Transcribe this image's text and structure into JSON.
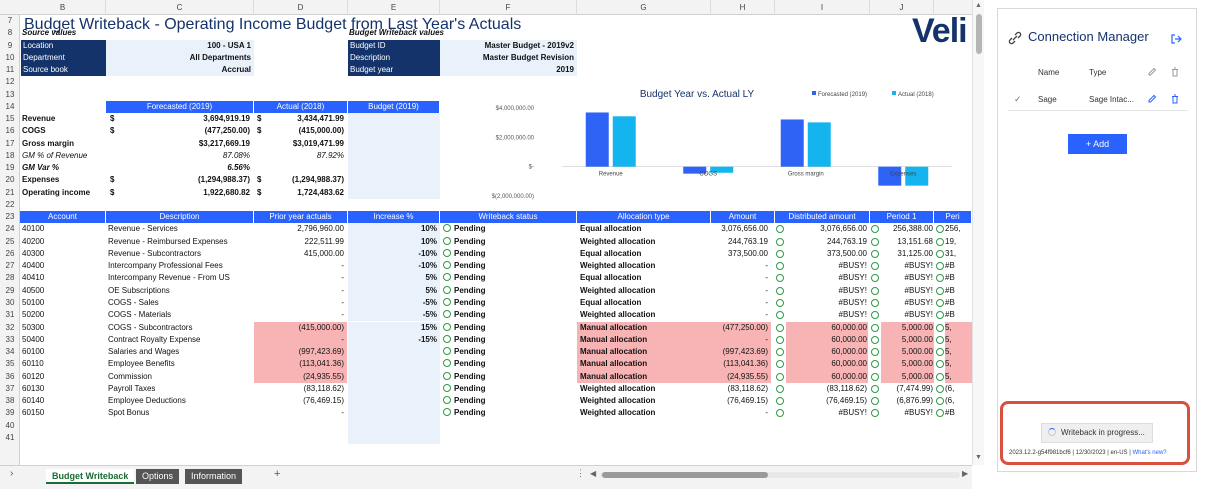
{
  "column_headers": [
    "B",
    "C",
    "D",
    "E",
    "F",
    "G",
    "H",
    "I",
    "J"
  ],
  "title": "Budget Writeback - Operating Income Budget from Last Year's Actuals",
  "logo_text": "Veli",
  "source_values": {
    "heading": "Source values",
    "rows": [
      {
        "label": "Location",
        "value": "100 - USA 1"
      },
      {
        "label": "Department",
        "value": "All Departments"
      },
      {
        "label": "Source book",
        "value": "Accrual"
      }
    ]
  },
  "writeback_values": {
    "heading": "Budget Writeback values",
    "rows": [
      {
        "label": "Budget ID",
        "value": "Master Budget - 2019v2"
      },
      {
        "label": "Description",
        "value": "Master Budget Revision"
      },
      {
        "label": "Budget year",
        "value": "2019"
      }
    ]
  },
  "summary": {
    "headers": [
      "Forecasted (2019)",
      "Actual (2018)",
      "Budget (2019)"
    ],
    "rows": [
      {
        "label": "Revenue",
        "bold": true,
        "italic": false,
        "c1": "$",
        "c2": "3,694,919.19",
        "c3": "$",
        "c4": "3,434,471.99"
      },
      {
        "label": "COGS",
        "bold": true,
        "italic": false,
        "c1": "$",
        "c2": "(477,250.00)",
        "c3": "$",
        "c4": "(415,000.00)"
      },
      {
        "label": "Gross margin",
        "bold": true,
        "italic": false,
        "c1": "",
        "c2": "$3,217,669.19",
        "c3": "",
        "c4": "$3,019,471.99"
      },
      {
        "label": "GM % of Revenue",
        "bold": false,
        "italic": true,
        "c1": "",
        "c2": "87.08%",
        "c3": "",
        "c4": "87.92%"
      },
      {
        "label": "GM Var %",
        "bold": true,
        "italic": true,
        "c1": "",
        "c2": "6.56%",
        "c3": "",
        "c4": ""
      },
      {
        "label": "Expenses",
        "bold": true,
        "italic": false,
        "c1": "$",
        "c2": "(1,294,988.37)",
        "c3": "$",
        "c4": "(1,294,988.37)"
      },
      {
        "label": "Operating income",
        "bold": true,
        "italic": false,
        "c1": "$",
        "c2": "1,922,680.82",
        "c3": "$",
        "c4": "1,724,483.62"
      }
    ]
  },
  "chart_data": {
    "type": "bar",
    "title": "Budget Year vs. Actual LY",
    "categories": [
      "Revenue",
      "COGS",
      "Gross margin",
      "Expenses"
    ],
    "series": [
      {
        "name": "Forecasted (2019)",
        "color": "#2e63f6",
        "values": [
          3694919.19,
          -477250.0,
          3217669.19,
          -1294988.37
        ]
      },
      {
        "name": "Actual (2018)",
        "color": "#14b5ee",
        "values": [
          3434471.99,
          -415000.0,
          3019471.99,
          -1294988.37
        ]
      }
    ],
    "yticks": [
      "$4,000,000.00",
      "$2,000,000.00",
      "$-",
      "$(2,000,000.00)"
    ],
    "ylim": [
      -2000000,
      4000000
    ],
    "legend": "top-right"
  },
  "main_table": {
    "headers": [
      "Account",
      "Description",
      "Prior year actuals",
      "Increase %",
      "Writeback status",
      "Allocation type",
      "Amount",
      "Distributed amount",
      "Period 1",
      "Peri"
    ],
    "rows": [
      {
        "account": "40100",
        "desc": "Revenue - Services",
        "prior": "2,796,960.00",
        "inc": "10%",
        "status": "Pending",
        "alloc": "Equal allocation",
        "amount": "3,076,656.00",
        "dist": "3,076,656.00",
        "p1": "256,388.00",
        "p2": "256,",
        "pink": false
      },
      {
        "account": "40200",
        "desc": "Revenue - Reimbursed Expenses",
        "prior": "222,511.99",
        "inc": "10%",
        "status": "Pending",
        "alloc": "Weighted allocation",
        "amount": "244,763.19",
        "dist": "244,763.19",
        "p1": "13,151.68",
        "p2": "19,",
        "pink": false
      },
      {
        "account": "40300",
        "desc": "Revenue - Subcontractors",
        "prior": "415,000.00",
        "inc": "-10%",
        "status": "Pending",
        "alloc": "Equal allocation",
        "amount": "373,500.00",
        "dist": "373,500.00",
        "p1": "31,125.00",
        "p2": "31,",
        "pink": false
      },
      {
        "account": "40400",
        "desc": "Intercompany Professional Fees",
        "prior": "-",
        "inc": "-10%",
        "status": "Pending",
        "alloc": "Weighted allocation",
        "amount": "-",
        "dist": "#BUSY!",
        "p1": "#BUSY!",
        "p2": "#B",
        "pink": false
      },
      {
        "account": "40410",
        "desc": "Intercompany Revenue - From US",
        "prior": "-",
        "inc": "5%",
        "status": "Pending",
        "alloc": "Equal allocation",
        "amount": "-",
        "dist": "#BUSY!",
        "p1": "#BUSY!",
        "p2": "#B",
        "pink": false
      },
      {
        "account": "40500",
        "desc": "OE Subscriptions",
        "prior": "-",
        "inc": "5%",
        "status": "Pending",
        "alloc": "Weighted allocation",
        "amount": "-",
        "dist": "#BUSY!",
        "p1": "#BUSY!",
        "p2": "#B",
        "pink": false
      },
      {
        "account": "50100",
        "desc": "COGS - Sales",
        "prior": "-",
        "inc": "-5%",
        "status": "Pending",
        "alloc": "Equal allocation",
        "amount": "-",
        "dist": "#BUSY!",
        "p1": "#BUSY!",
        "p2": "#B",
        "pink": false
      },
      {
        "account": "50200",
        "desc": "COGS - Materials",
        "prior": "-",
        "inc": "-5%",
        "status": "Pending",
        "alloc": "Weighted allocation",
        "amount": "-",
        "dist": "#BUSY!",
        "p1": "#BUSY!",
        "p2": "#B",
        "pink": false
      },
      {
        "account": "50300",
        "desc": "COGS - Subcontractors",
        "prior": "(415,000.00)",
        "inc": "15%",
        "status": "Pending",
        "alloc": "Manual allocation",
        "amount": "(477,250.00)",
        "dist": "60,000.00",
        "p1": "5,000.00",
        "p2": "5,",
        "pink": true
      },
      {
        "account": "50400",
        "desc": "Contract Royalty Expense",
        "prior": "-",
        "inc": "-15%",
        "status": "Pending",
        "alloc": "Manual allocation",
        "amount": "-",
        "dist": "60,000.00",
        "p1": "5,000.00",
        "p2": "5,",
        "pink": true
      },
      {
        "account": "60100",
        "desc": "Salaries and Wages",
        "prior": "(997,423.69)",
        "inc": "",
        "status": "Pending",
        "alloc": "Manual allocation",
        "amount": "(997,423.69)",
        "dist": "60,000.00",
        "p1": "5,000.00",
        "p2": "5,",
        "pink": true
      },
      {
        "account": "60110",
        "desc": "Employee Benefits",
        "prior": "(113,041.36)",
        "inc": "",
        "status": "Pending",
        "alloc": "Manual allocation",
        "amount": "(113,041.36)",
        "dist": "60,000.00",
        "p1": "5,000.00",
        "p2": "5,",
        "pink": true
      },
      {
        "account": "60120",
        "desc": "Commission",
        "prior": "(24,935.55)",
        "inc": "",
        "status": "Pending",
        "alloc": "Manual allocation",
        "amount": "(24,935.55)",
        "dist": "60,000.00",
        "p1": "5,000.00",
        "p2": "5,",
        "pink": true
      },
      {
        "account": "60130",
        "desc": "Payroll Taxes",
        "prior": "(83,118.62)",
        "inc": "",
        "status": "Pending",
        "alloc": "Weighted allocation",
        "amount": "(83,118.62)",
        "dist": "(83,118.62)",
        "p1": "(7,474.99)",
        "p2": "(6,",
        "pink": false
      },
      {
        "account": "60140",
        "desc": "Employee Deductions",
        "prior": "(76,469.15)",
        "inc": "",
        "status": "Pending",
        "alloc": "Weighted allocation",
        "amount": "(76,469.15)",
        "dist": "(76,469.15)",
        "p1": "(6,876.99)",
        "p2": "(6,",
        "pink": false
      },
      {
        "account": "60150",
        "desc": "Spot Bonus",
        "prior": "-",
        "inc": "",
        "status": "Pending",
        "alloc": "Weighted allocation",
        "amount": "-",
        "dist": "#BUSY!",
        "p1": "#BUSY!",
        "p2": "#B",
        "pink": false
      }
    ]
  },
  "sheet_tabs": [
    {
      "label": "Budget Writeback",
      "active": true
    },
    {
      "label": "Options",
      "active": false
    },
    {
      "label": "Information",
      "active": false
    }
  ],
  "add_sheet": "+",
  "panel": {
    "title": "Connection Manager",
    "col_name": "Name",
    "col_type": "Type",
    "row": {
      "name": "Sage",
      "type": "Sage Intac..."
    },
    "add_button": "Add",
    "progress_text": "Writeback in progress...",
    "version": "2023.12.2-g54f981bcf6 | 12/30/2023 | en-US |",
    "whats_new": "What's new?"
  }
}
